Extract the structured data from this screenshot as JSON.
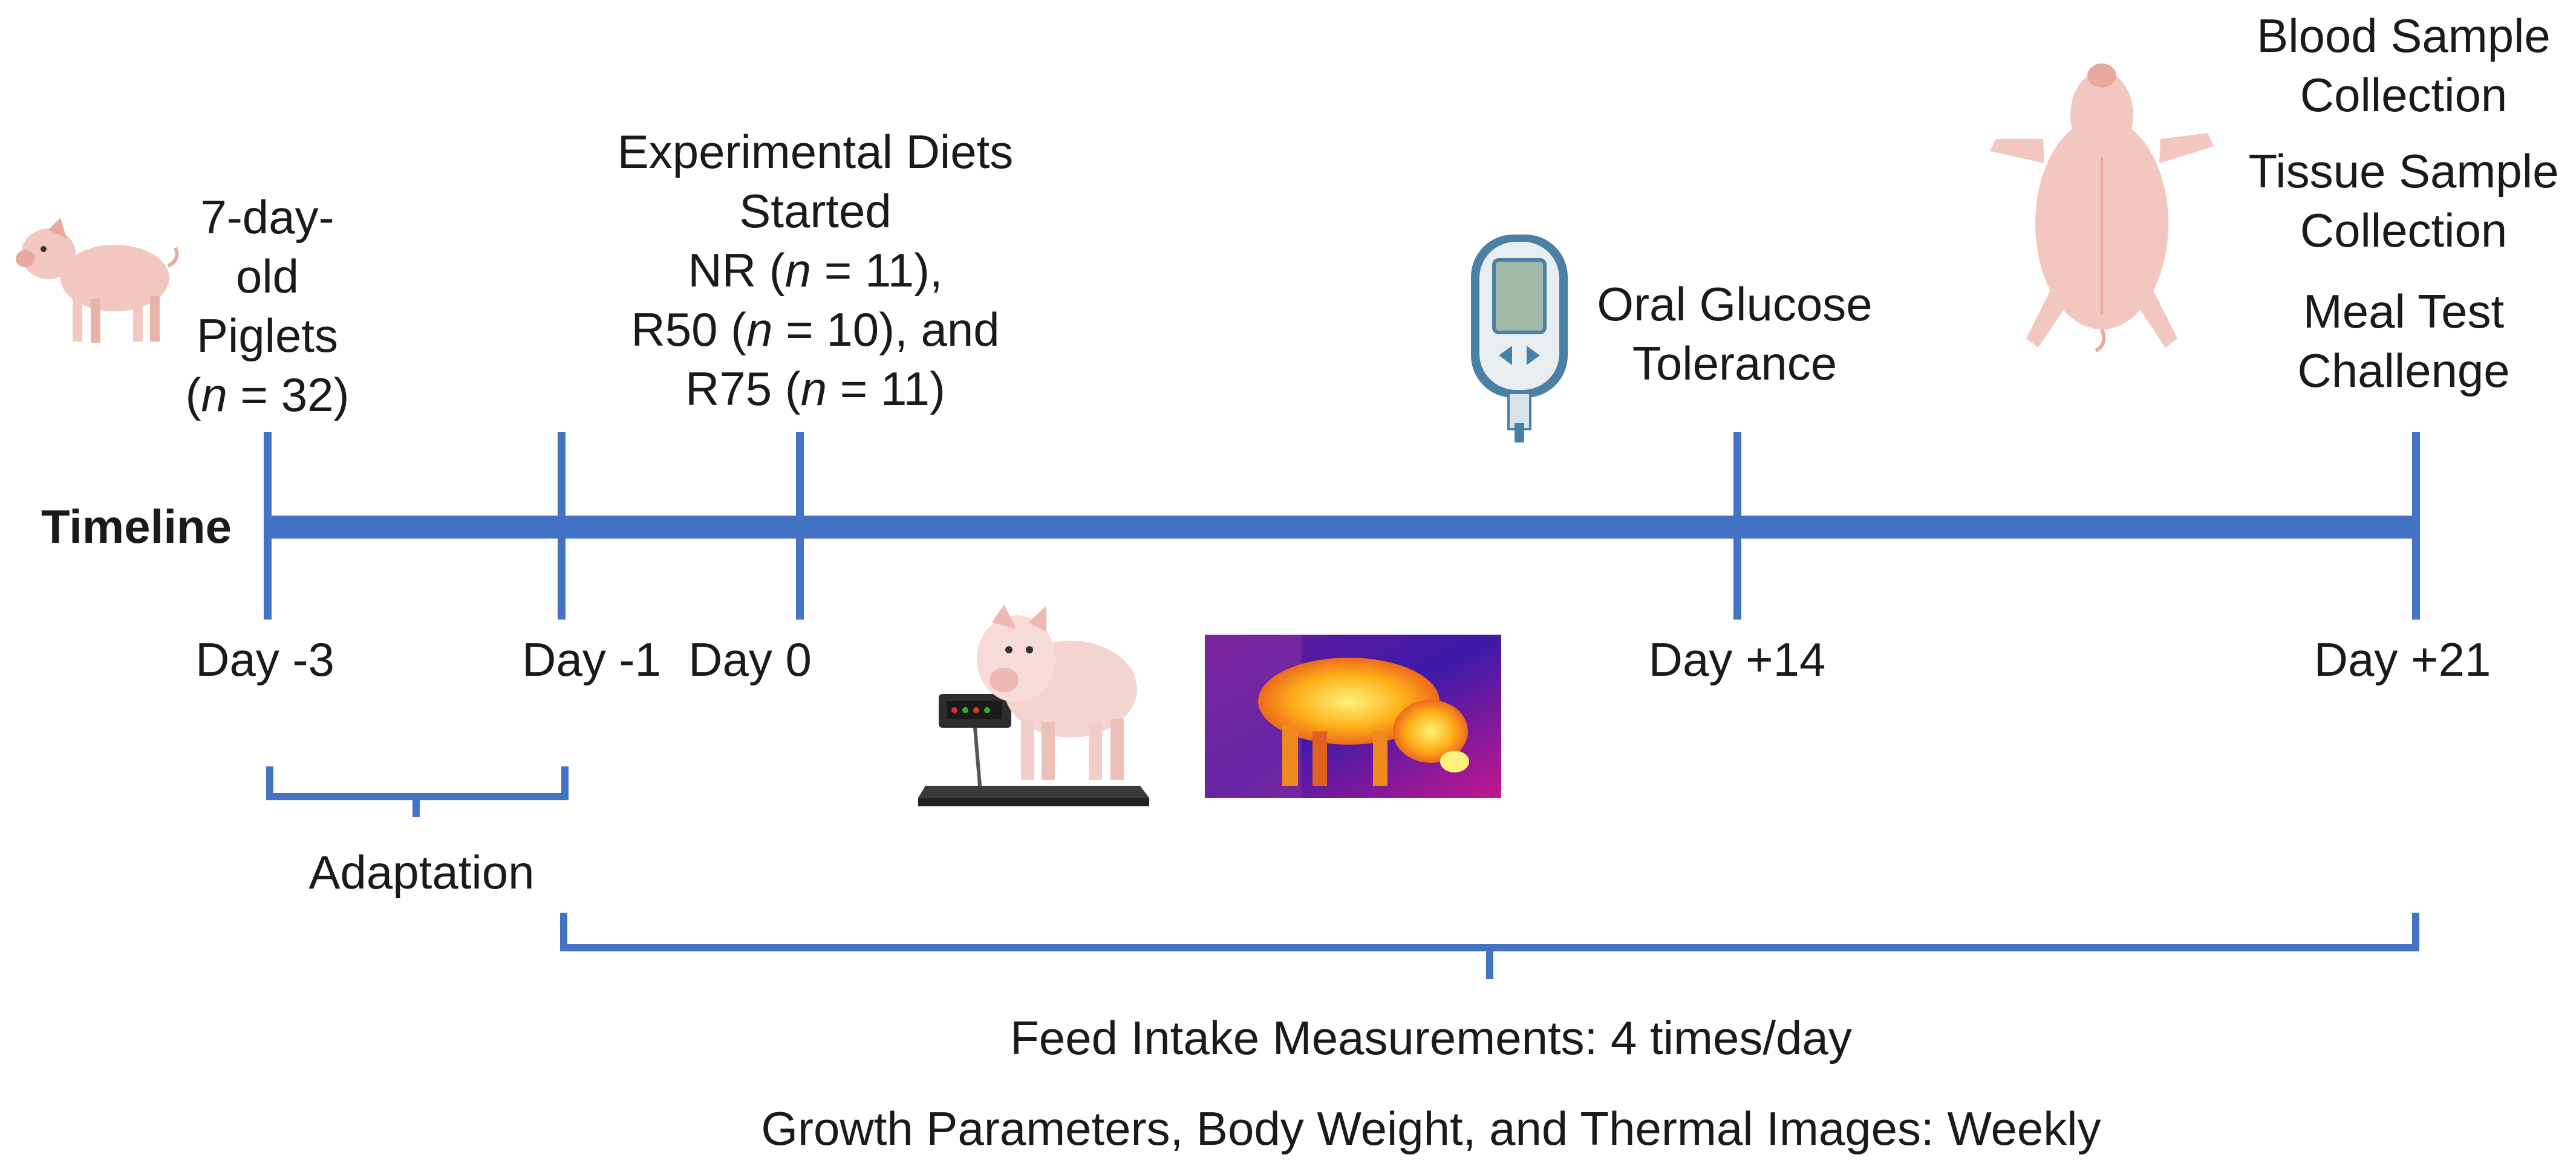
{
  "timeline_label": "Timeline",
  "events": {
    "piglets": {
      "line1": "7-day-",
      "line2": "old",
      "line3": "Piglets",
      "line4_pre": "(",
      "line4_n": "n",
      "line4_post": " = 32)"
    },
    "diets": {
      "line1": "Experimental Diets",
      "line2": "Started",
      "nr_pre": "NR (",
      "nr_n": "n",
      "nr_post": " = 11),",
      "r50_pre": "R50 (",
      "r50_n": "n",
      "r50_post": " = 10), and",
      "r75_pre": "R75 (",
      "r75_n": "n",
      "r75_post": " = 11)"
    },
    "glucose": {
      "line1": "Oral Glucose",
      "line2": "Tolerance"
    },
    "final": {
      "blood1": "Blood Sample",
      "blood2": "Collection",
      "tissue1": "Tissue Sample",
      "tissue2": "Collection",
      "meal1": "Meal Test",
      "meal2": "Challenge"
    }
  },
  "days": {
    "d_minus3": "Day -3",
    "d_minus1": "Day -1",
    "d0": "Day 0",
    "d14": "Day +14",
    "d21": "Day +21"
  },
  "periods": {
    "adaptation": "Adaptation",
    "feed_intake": "Feed Intake Measurements: 4 times/day",
    "growth": "Growth Parameters, Body Weight, and Thermal Images: Weekly"
  },
  "colors": {
    "timeline_blue": "#4472c4",
    "pig_pink": "#f2c7c0"
  },
  "icons": [
    "piglet-icon",
    "glucose-meter-icon",
    "pig-on-scale-icon",
    "thermal-pig-icon",
    "pig-carcass-icon"
  ]
}
